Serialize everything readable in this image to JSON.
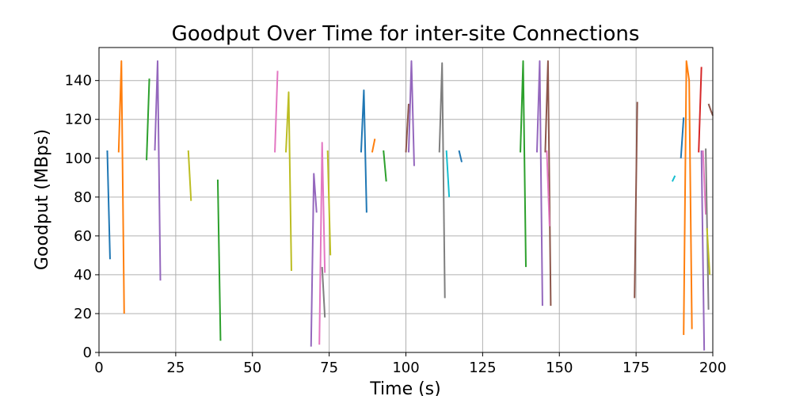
{
  "chart_data": {
    "type": "line",
    "title": "Goodput Over Time for inter-site Connections",
    "xlabel": "Time (s)",
    "ylabel": "Goodput (MBps)",
    "xlim": [
      0,
      200
    ],
    "ylim": [
      0,
      157
    ],
    "xticks": [
      0,
      25,
      50,
      75,
      100,
      125,
      150,
      175,
      200
    ],
    "yticks": [
      0,
      20,
      40,
      60,
      80,
      100,
      120,
      140
    ],
    "grid": true,
    "series": [
      {
        "color": "#1f77b4",
        "points": [
          [
            2.7,
            104
          ],
          [
            3.6,
            48
          ]
        ]
      },
      {
        "color": "#ff7f0e",
        "points": [
          [
            6.4,
            103
          ],
          [
            7.3,
            150
          ],
          [
            8.2,
            20
          ]
        ]
      },
      {
        "color": "#2ca02c",
        "points": [
          [
            15.5,
            99
          ],
          [
            16.4,
            141
          ]
        ]
      },
      {
        "color": "#9467bd",
        "points": [
          [
            18.2,
            104
          ],
          [
            19.1,
            150
          ],
          [
            20.0,
            37
          ]
        ]
      },
      {
        "color": "#bcbd22",
        "points": [
          [
            29.1,
            104
          ],
          [
            30.0,
            78
          ]
        ]
      },
      {
        "color": "#2ca02c",
        "points": [
          [
            38.7,
            89
          ],
          [
            39.6,
            6
          ]
        ]
      },
      {
        "color": "#e377c2",
        "points": [
          [
            57.3,
            103
          ],
          [
            58.2,
            145
          ]
        ]
      },
      {
        "color": "#bcbd22",
        "points": [
          [
            60.9,
            103
          ],
          [
            61.8,
            134
          ],
          [
            62.7,
            42
          ]
        ]
      },
      {
        "color": "#9467bd",
        "points": [
          [
            69.1,
            3
          ],
          [
            70.0,
            92
          ],
          [
            70.9,
            72
          ]
        ]
      },
      {
        "color": "#e377c2",
        "points": [
          [
            71.8,
            4
          ],
          [
            72.7,
            108
          ],
          [
            73.6,
            41
          ]
        ]
      },
      {
        "color": "#7f7f7f",
        "points": [
          [
            72.7,
            44
          ],
          [
            73.6,
            18
          ]
        ]
      },
      {
        "color": "#bcbd22",
        "points": [
          [
            74.5,
            104
          ],
          [
            75.4,
            50
          ]
        ]
      },
      {
        "color": "#1f77b4",
        "points": [
          [
            85.4,
            103
          ],
          [
            86.3,
            135
          ],
          [
            87.2,
            72
          ]
        ]
      },
      {
        "color": "#ff7f0e",
        "points": [
          [
            89.0,
            103
          ],
          [
            89.9,
            110
          ]
        ]
      },
      {
        "color": "#2ca02c",
        "points": [
          [
            92.7,
            104
          ],
          [
            93.6,
            88
          ]
        ]
      },
      {
        "color": "#8c564b",
        "points": [
          [
            100.0,
            103
          ],
          [
            100.9,
            128
          ]
        ]
      },
      {
        "color": "#9467bd",
        "points": [
          [
            100.9,
            103
          ],
          [
            101.8,
            150
          ],
          [
            102.7,
            96
          ]
        ]
      },
      {
        "color": "#7f7f7f",
        "points": [
          [
            110.9,
            103
          ],
          [
            111.8,
            149
          ],
          [
            112.7,
            28
          ]
        ]
      },
      {
        "color": "#17becf",
        "points": [
          [
            113.2,
            104
          ],
          [
            114.1,
            80
          ]
        ]
      },
      {
        "color": "#1f77b4",
        "points": [
          [
            117.3,
            104
          ],
          [
            118.2,
            98
          ]
        ]
      },
      {
        "color": "#2ca02c",
        "points": [
          [
            137.3,
            103
          ],
          [
            138.2,
            150
          ],
          [
            139.1,
            44
          ]
        ]
      },
      {
        "color": "#9467bd",
        "points": [
          [
            142.7,
            103
          ],
          [
            143.6,
            150
          ],
          [
            144.5,
            24
          ]
        ]
      },
      {
        "color": "#8c564b",
        "points": [
          [
            145.4,
            103
          ],
          [
            146.3,
            150
          ],
          [
            147.2,
            24
          ]
        ]
      },
      {
        "color": "#e377c2",
        "points": [
          [
            145.9,
            104
          ],
          [
            146.8,
            65
          ]
        ]
      },
      {
        "color": "#8c564b",
        "points": [
          [
            174.5,
            28
          ],
          [
            175.4,
            129
          ]
        ]
      },
      {
        "color": "#17becf",
        "points": [
          [
            186.8,
            88
          ],
          [
            187.7,
            91
          ]
        ]
      },
      {
        "color": "#1f77b4",
        "points": [
          [
            189.6,
            100
          ],
          [
            190.5,
            121
          ]
        ]
      },
      {
        "color": "#ff7f0e",
        "points": [
          [
            190.5,
            9
          ],
          [
            191.4,
            150
          ],
          [
            192.3,
            140
          ],
          [
            193.2,
            12
          ]
        ]
      },
      {
        "color": "#d62728",
        "points": [
          [
            195.4,
            103
          ],
          [
            196.3,
            147
          ]
        ]
      },
      {
        "color": "#9467bd",
        "points": [
          [
            196.3,
            104
          ],
          [
            197.2,
            1
          ]
        ]
      },
      {
        "color": "#e377c2",
        "points": [
          [
            196.8,
            104
          ],
          [
            197.7,
            71
          ]
        ]
      },
      {
        "color": "#7f7f7f",
        "points": [
          [
            197.7,
            105
          ],
          [
            198.6,
            22
          ]
        ]
      },
      {
        "color": "#bcbd22",
        "points": [
          [
            198.1,
            64
          ],
          [
            199.0,
            40
          ]
        ]
      },
      {
        "color": "#8c564b",
        "points": [
          [
            198.6,
            128
          ],
          [
            199.5,
            124
          ],
          [
            200.0,
            122
          ]
        ]
      }
    ]
  }
}
